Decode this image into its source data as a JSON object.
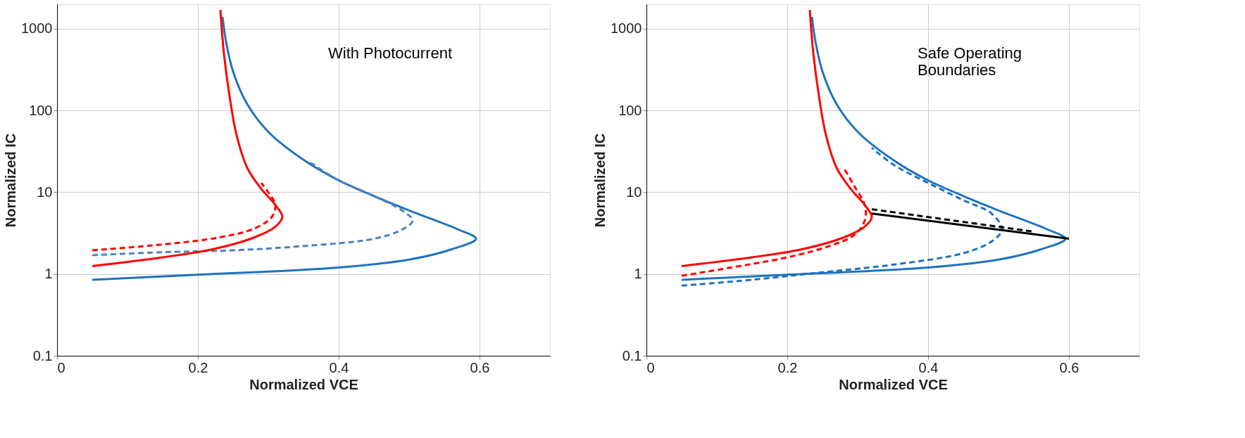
{
  "chart_data": [
    {
      "type": "line",
      "xlabel": "Normalized VCE",
      "ylabel": "Normalized IC",
      "xlim": [
        0,
        0.7
      ],
      "ylim": [
        0.1,
        2000
      ],
      "xticks": [
        0,
        0.2,
        0.4,
        0.6
      ],
      "yticks": [
        0.1,
        1,
        10,
        100,
        1000
      ],
      "log": "y",
      "grid": true,
      "annotations": [
        "With Photocurrent"
      ],
      "series": [
        {
          "color": "#1f73c0",
          "line_style": "solid",
          "x": [
            0.05,
            0.2,
            0.4,
            0.5,
            0.56,
            0.595,
            0.57,
            0.5,
            0.45,
            0.4,
            0.35,
            0.3,
            0.27,
            0.25,
            0.24,
            0.235
          ],
          "values": [
            0.85,
            0.98,
            1.2,
            1.5,
            2,
            2.7,
            3.5,
            6,
            9,
            14,
            25,
            55,
            120,
            300,
            700,
            1400
          ]
        },
        {
          "color": "#4f81bd",
          "line_style": "dashed",
          "x": [
            0.05,
            0.15,
            0.25,
            0.35,
            0.45,
            0.49,
            0.505,
            0.49,
            0.45,
            0.4,
            0.36
          ],
          "values": [
            1.7,
            1.85,
            1.95,
            2.2,
            2.7,
            3.5,
            4.5,
            6,
            9,
            14,
            23
          ]
        },
        {
          "color": "#ff0000",
          "line_style": "solid",
          "x": [
            0.05,
            0.15,
            0.22,
            0.28,
            0.31,
            0.32,
            0.31,
            0.29,
            0.27,
            0.255,
            0.245,
            0.237,
            0.232
          ],
          "values": [
            1.25,
            1.6,
            2,
            2.8,
            3.8,
            5,
            7,
            11,
            20,
            50,
            150,
            500,
            1700
          ]
        },
        {
          "color": "#ff0000",
          "line_style": "dashed",
          "x": [
            0.05,
            0.15,
            0.23,
            0.28,
            0.305,
            0.31,
            0.3,
            0.29
          ],
          "values": [
            1.95,
            2.3,
            2.8,
            3.6,
            5,
            7,
            10,
            13
          ]
        }
      ]
    },
    {
      "type": "line",
      "xlabel": "Normalized VCE",
      "ylabel": "Normalized IC",
      "xlim": [
        0,
        0.7
      ],
      "ylim": [
        0.1,
        2000
      ],
      "xticks": [
        0,
        0.2,
        0.4,
        0.6
      ],
      "yticks": [
        0.1,
        1,
        10,
        100,
        1000
      ],
      "log": "y",
      "grid": true,
      "annotations": [
        "Safe Operating\nBoundaries"
      ],
      "series": [
        {
          "color": "#1f73c0",
          "line_style": "solid",
          "x": [
            0.05,
            0.2,
            0.4,
            0.5,
            0.56,
            0.595,
            0.57,
            0.5,
            0.45,
            0.4,
            0.35,
            0.3,
            0.27,
            0.25,
            0.24,
            0.235
          ],
          "values": [
            0.85,
            0.98,
            1.2,
            1.5,
            2,
            2.7,
            3.5,
            6,
            9,
            14,
            25,
            55,
            120,
            300,
            700,
            1400
          ]
        },
        {
          "color": "#1f73c0",
          "line_style": "dashed",
          "x": [
            0.05,
            0.15,
            0.25,
            0.35,
            0.45,
            0.49,
            0.505,
            0.49,
            0.45,
            0.4,
            0.35,
            0.32
          ],
          "values": [
            0.72,
            0.85,
            1.05,
            1.3,
            1.8,
            2.5,
            3.5,
            5.5,
            8,
            13,
            22,
            35
          ]
        },
        {
          "color": "#ff0000",
          "line_style": "solid",
          "x": [
            0.05,
            0.15,
            0.22,
            0.28,
            0.31,
            0.32,
            0.31,
            0.29,
            0.27,
            0.255,
            0.245,
            0.237,
            0.232
          ],
          "values": [
            1.25,
            1.6,
            2,
            2.8,
            3.8,
            5,
            7,
            11,
            20,
            50,
            150,
            500,
            1700
          ]
        },
        {
          "color": "#ff0000",
          "line_style": "dashed",
          "x": [
            0.05,
            0.12,
            0.2,
            0.26,
            0.295,
            0.31,
            0.31,
            0.295,
            0.28
          ],
          "values": [
            0.95,
            1.2,
            1.6,
            2.2,
            3,
            4.5,
            7,
            12,
            20
          ]
        },
        {
          "color": "#000000",
          "line_style": "solid",
          "x": [
            0.32,
            0.6
          ],
          "values": [
            5.5,
            2.7
          ]
        },
        {
          "color": "#000000",
          "line_style": "dashed",
          "x": [
            0.32,
            0.55
          ],
          "values": [
            6.2,
            3.3
          ]
        }
      ]
    }
  ]
}
